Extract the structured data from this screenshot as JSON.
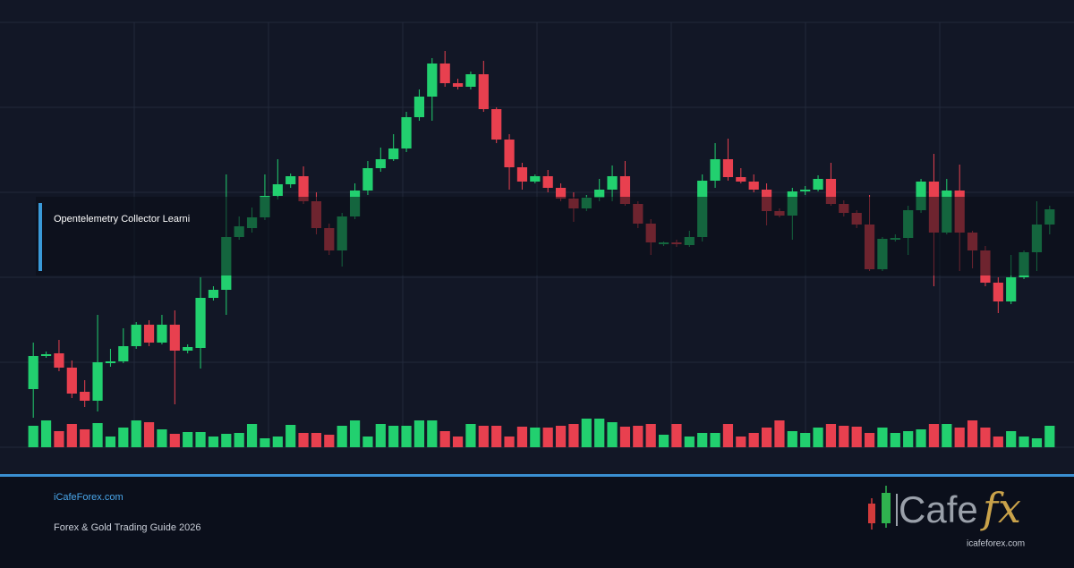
{
  "card": {
    "title": "Opentelemetry Collector Learni",
    "site": "iCafeForex.com",
    "subtitle": "Forex & Gold Trading Guide 2026",
    "logo": {
      "text": "Cafe",
      "accent": "fx",
      "url": "icafeforex.com"
    }
  },
  "chart_data": {
    "type": "candlestick",
    "up_color": "#22d06f",
    "down_color": "#e8404f",
    "grid": true,
    "ylim": [
      0,
      475
    ],
    "yticks": [
      0,
      95,
      190,
      285,
      380,
      475
    ],
    "volume_lim": [
      0,
      100
    ],
    "open": [
      65,
      102,
      105,
      89,
      62,
      52,
      94,
      96,
      113,
      137,
      117,
      137,
      108,
      111,
      167,
      176,
      235,
      245,
      257,
      281,
      294,
      303,
      275,
      245,
      220,
      258,
      287,
      312,
      322,
      334,
      369,
      392,
      429,
      407,
      403,
      417,
      378,
      344,
      313,
      297,
      303,
      290,
      278,
      267,
      279,
      288,
      303,
      272,
      250,
      227,
      229,
      226,
      235,
      298,
      322,
      302,
      297,
      288,
      264,
      259,
      286,
      288,
      300,
      272,
      262,
      249,
      199,
      233,
      234,
      265,
      297,
      240,
      287,
      240,
      220,
      184,
      163,
      190,
      218,
      249
    ],
    "high": [
      117,
      107,
      120,
      97,
      75,
      148,
      110,
      133,
      140,
      142,
      148,
      153,
      115,
      190,
      180,
      305,
      258,
      268,
      305,
      322,
      306,
      314,
      285,
      250,
      262,
      295,
      320,
      335,
      350,
      375,
      400,
      435,
      443,
      412,
      420,
      432,
      380,
      350,
      318,
      305,
      310,
      295,
      285,
      282,
      300,
      315,
      320,
      275,
      255,
      230,
      232,
      242,
      305,
      340,
      345,
      312,
      305,
      295,
      267,
      290,
      292,
      304,
      318,
      276,
      265,
      282,
      235,
      238,
      270,
      300,
      328,
      300,
      316,
      242,
      225,
      190,
      215,
      220,
      275,
      270
    ],
    "low": [
      33,
      100,
      85,
      55,
      45,
      40,
      90,
      94,
      110,
      113,
      115,
      48,
      105,
      88,
      164,
      148,
      232,
      240,
      254,
      277,
      290,
      272,
      238,
      215,
      202,
      255,
      282,
      308,
      320,
      330,
      365,
      365,
      403,
      400,
      400,
      375,
      340,
      288,
      288,
      295,
      285,
      275,
      252,
      264,
      275,
      275,
      270,
      245,
      215,
      225,
      224,
      224,
      230,
      290,
      298,
      295,
      285,
      248,
      257,
      232,
      282,
      286,
      270,
      258,
      245,
      197,
      197,
      230,
      215,
      262,
      180,
      238,
      197,
      200,
      180,
      150,
      160,
      188,
      197,
      238
    ],
    "close": [
      102,
      104,
      89,
      60,
      52,
      95,
      96,
      113,
      137,
      117,
      137,
      108,
      112,
      167,
      176,
      235,
      247,
      257,
      281,
      294,
      303,
      275,
      245,
      220,
      258,
      287,
      312,
      322,
      334,
      369,
      392,
      429,
      407,
      403,
      417,
      378,
      344,
      313,
      297,
      303,
      290,
      278,
      267,
      279,
      288,
      303,
      272,
      250,
      229,
      229,
      227,
      235,
      298,
      322,
      302,
      297,
      288,
      264,
      259,
      286,
      288,
      300,
      272,
      262,
      249,
      199,
      233,
      234,
      265,
      297,
      240,
      287,
      240,
      220,
      184,
      163,
      190,
      218,
      249,
      266
    ],
    "volume": [
      24,
      30,
      18,
      26,
      20,
      27,
      12,
      22,
      30,
      28,
      20,
      15,
      17,
      17,
      12,
      15,
      16,
      26,
      10,
      12,
      25,
      16,
      16,
      14,
      24,
      30,
      12,
      26,
      24,
      24,
      30,
      30,
      18,
      12,
      26,
      24,
      24,
      12,
      23,
      22,
      22,
      24,
      26,
      32,
      32,
      28,
      23,
      24,
      26,
      14,
      26,
      12,
      16,
      16,
      26,
      12,
      16,
      22,
      30,
      18,
      16,
      22,
      26,
      24,
      23,
      16,
      22,
      16,
      18,
      20,
      26,
      26,
      22,
      30,
      22,
      12,
      18,
      12,
      10,
      24
    ]
  }
}
